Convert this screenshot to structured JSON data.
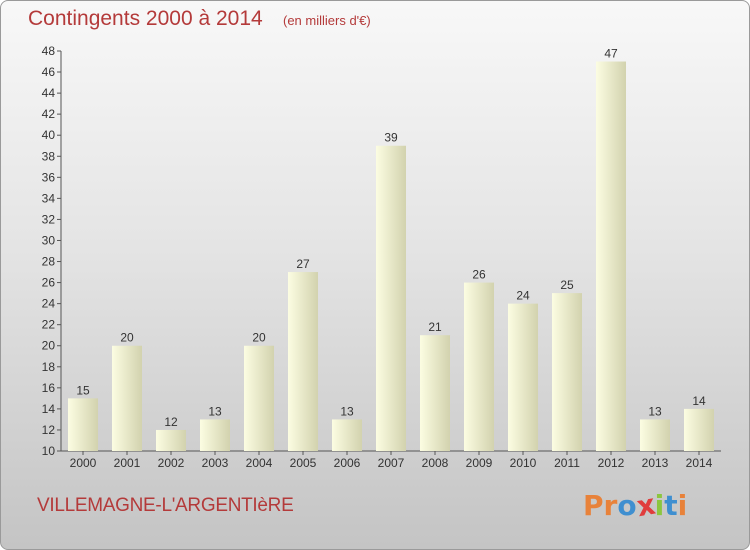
{
  "header": {
    "title": "Contingents 2000 à 2014",
    "unit": "(en milliers d'€)"
  },
  "footer": {
    "commune": "VILLEMAGNE-L'ARGENTIèRE",
    "logo_letters": [
      "P",
      "r",
      "o",
      "x",
      "i",
      "t",
      "i"
    ]
  },
  "colors": {
    "title": "#b43a3a",
    "bar_light": "#fcfde2",
    "bar_dark": "#cfcfa9",
    "logo": [
      "#e8823a",
      "#e8823a",
      "#3f8fd0",
      "#e03c3c",
      "#8cc63f",
      "#3f8fd0",
      "#e8823a"
    ]
  },
  "chart_data": {
    "type": "bar",
    "categories": [
      "2000",
      "2001",
      "2002",
      "2003",
      "2004",
      "2005",
      "2006",
      "2007",
      "2008",
      "2009",
      "2010",
      "2011",
      "2012",
      "2013",
      "2014"
    ],
    "values": [
      15,
      20,
      12,
      13,
      20,
      27,
      13,
      39,
      21,
      26,
      24,
      25,
      47,
      13,
      14
    ],
    "ylim": [
      10,
      48
    ],
    "yticks": [
      10,
      12,
      14,
      16,
      18,
      20,
      22,
      24,
      26,
      28,
      30,
      32,
      34,
      36,
      38,
      40,
      42,
      44,
      46,
      48
    ],
    "grid": false,
    "data_labels": true
  }
}
